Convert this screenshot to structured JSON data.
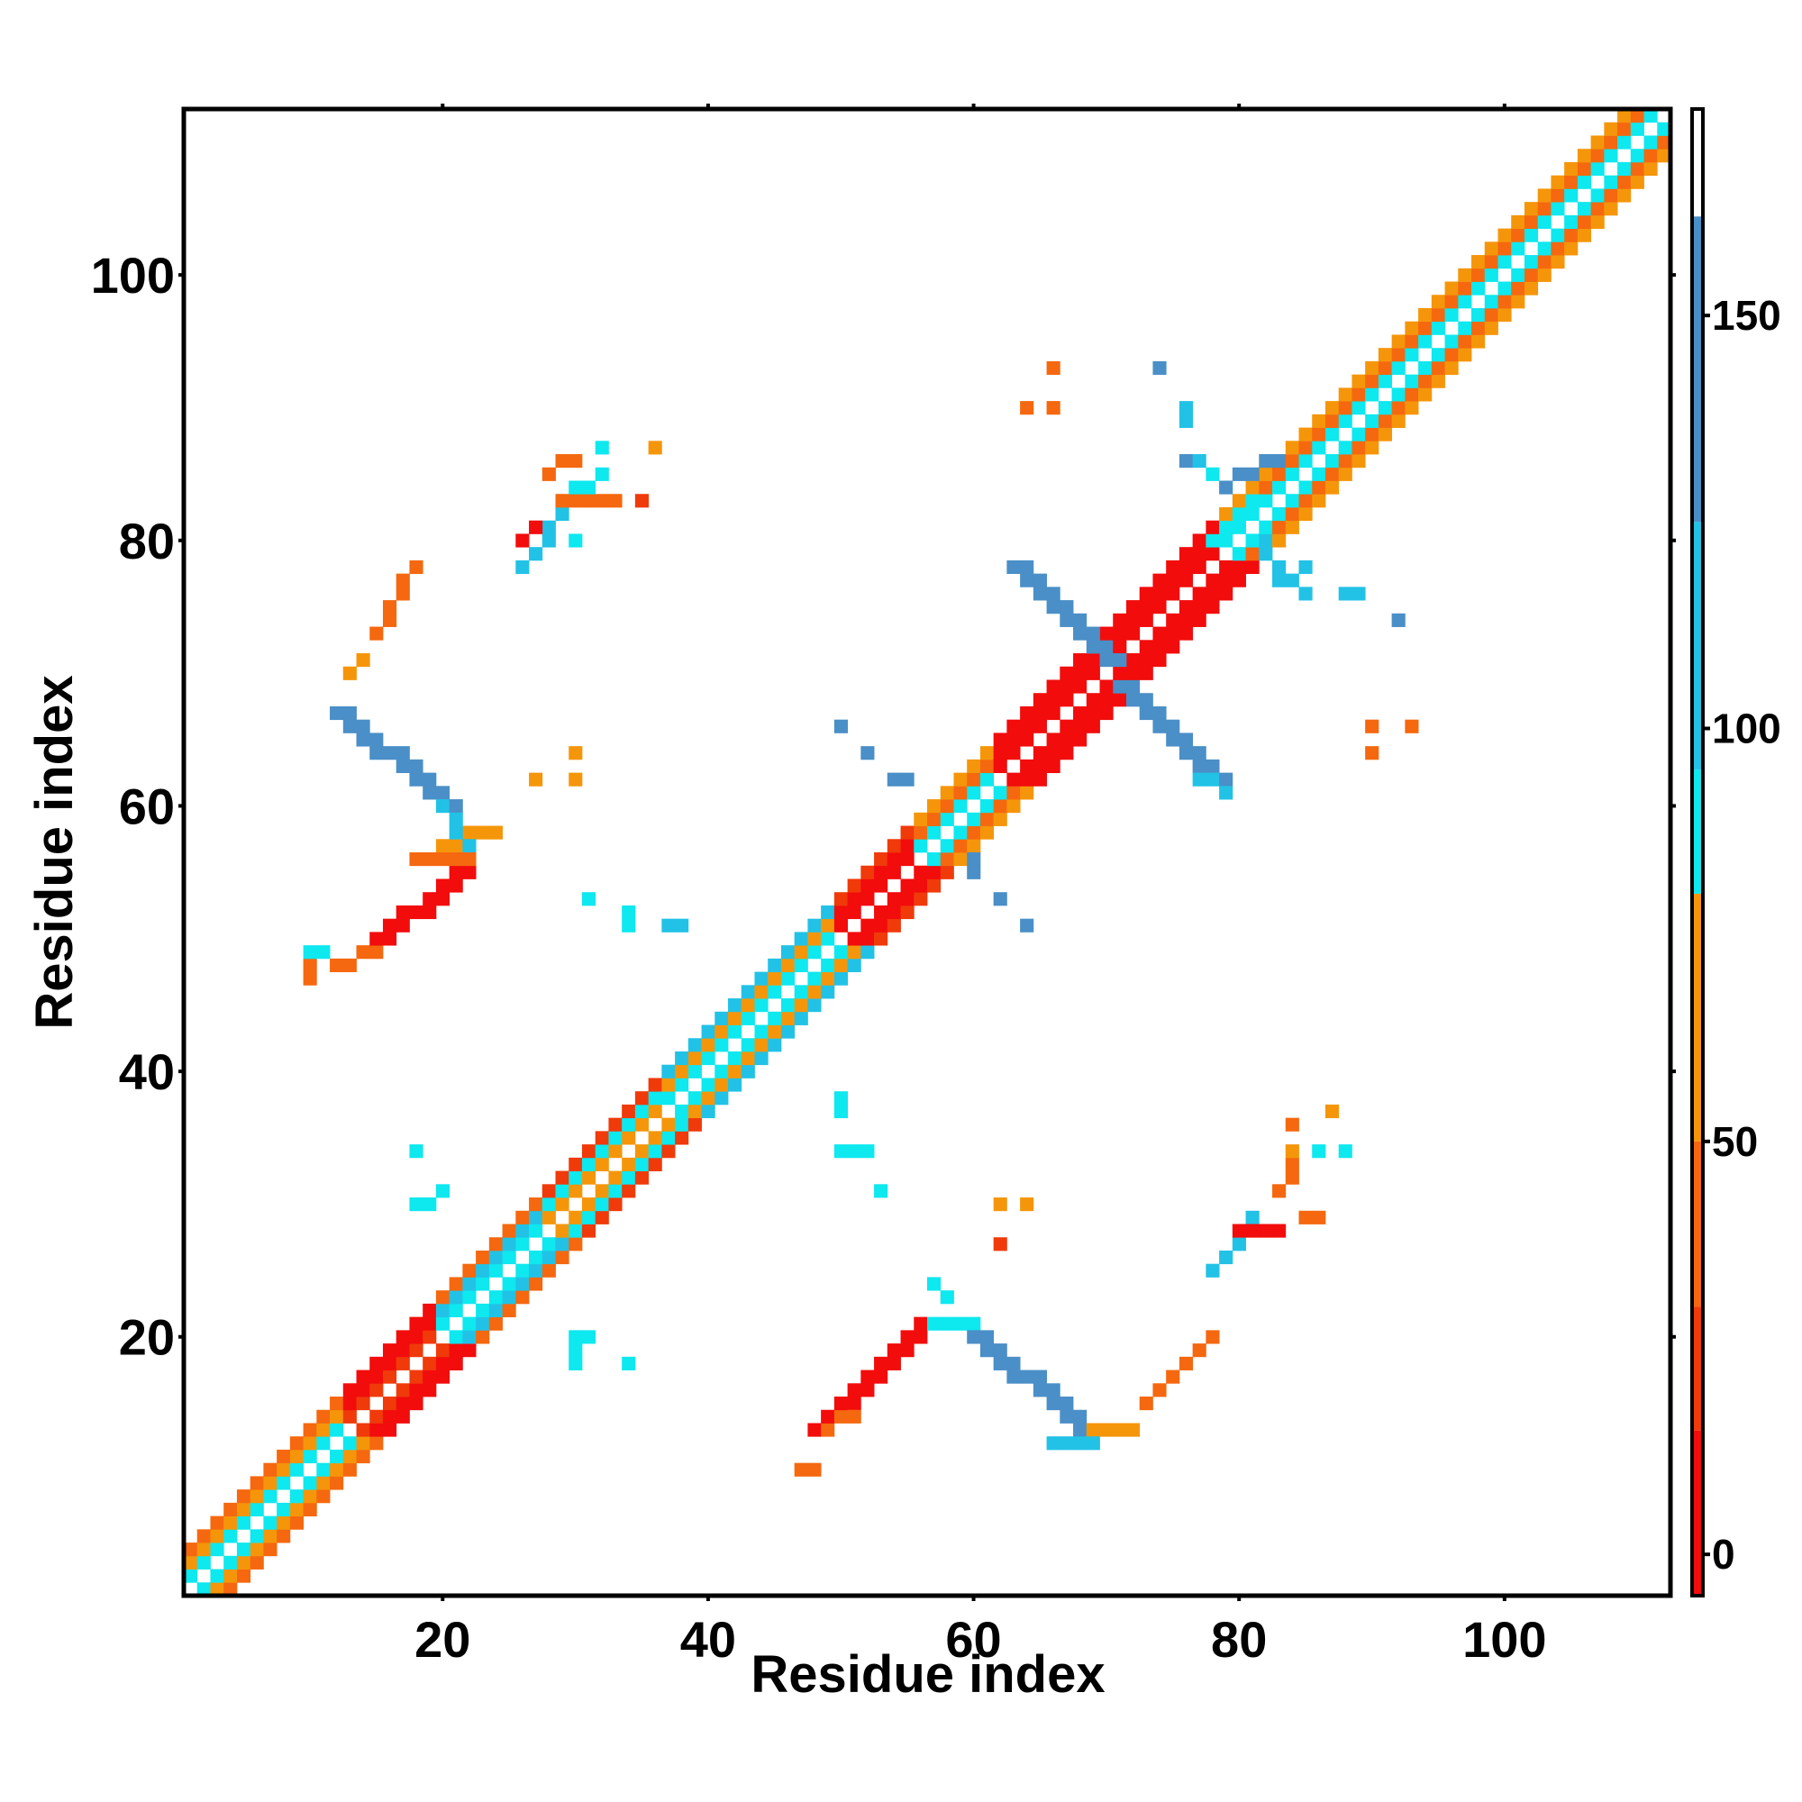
{
  "chart_data": {
    "type": "heatmap",
    "title": "",
    "xlabel": "Residue index",
    "ylabel": "Residue index",
    "xlim": [
      0.5,
      112.5
    ],
    "ylim": [
      0.5,
      112.5
    ],
    "x_ticks": [
      20,
      40,
      60,
      80,
      100
    ],
    "y_ticks": [
      20,
      40,
      60,
      80,
      100
    ],
    "grid": false,
    "legend": "colorbar-right",
    "colorbar": {
      "range": [
        -5,
        175
      ],
      "ticks": [
        0,
        50,
        100,
        150
      ],
      "bands": [
        {
          "from": -5,
          "to": 15,
          "color": "#f20c0c"
        },
        {
          "from": 15,
          "to": 30,
          "color": "#f03a0a"
        },
        {
          "from": 30,
          "to": 50,
          "color": "#f5680f"
        },
        {
          "from": 50,
          "to": 80,
          "color": "#f5960a"
        },
        {
          "from": 80,
          "to": 95,
          "color": "#0ee8ef"
        },
        {
          "from": 95,
          "to": 125,
          "color": "#22c2e6"
        },
        {
          "from": 125,
          "to": 162,
          "color": "#4a8fc7"
        },
        {
          "from": 162,
          "to": 175,
          "color": "#ffffff"
        }
      ]
    },
    "values_note_scale": "contact value per residue pair; symmetric matrix",
    "palette": {
      "A": "#f20c0c",
      "B": "#f03a0a",
      "C": "#f5680f",
      "D": "#f5960a",
      "E": "#0ee8ef",
      "F": "#22c2e6",
      "G": "#4a8fc7"
    },
    "palette_values": {
      "A": 5,
      "B": 25,
      "C": 40,
      "D": 65,
      "E": 90,
      "F": 110,
      "G": 145
    },
    "diagonal_pattern": {
      "ranges": [
        {
          "start": 1,
          "end": 13,
          "codes": [
            "E",
            "D",
            "C"
          ]
        },
        {
          "start": 13,
          "end": 20,
          "codes": [
            "B",
            "A",
            "A"
          ]
        },
        {
          "start": 20,
          "end": 28,
          "codes": [
            "E",
            "F",
            "C"
          ]
        },
        {
          "start": 28,
          "end": 37,
          "codes": [
            "D",
            "E",
            "B"
          ]
        },
        {
          "start": 37,
          "end": 50,
          "codes": [
            "E",
            "D",
            "F"
          ]
        },
        {
          "start": 50,
          "end": 56,
          "codes": [
            "A",
            "A",
            "B"
          ]
        },
        {
          "start": 56,
          "end": 62,
          "codes": [
            "E",
            "C",
            "D"
          ]
        },
        {
          "start": 62,
          "end": 79,
          "codes": [
            "A",
            "A",
            "A"
          ]
        },
        {
          "start": 79,
          "end": 112,
          "codes": [
            "E",
            "C",
            "D"
          ]
        }
      ]
    },
    "contacts": [
      {
        "x1": 12,
        "y1": 67,
        "x2": 20,
        "y2": 60,
        "code": "G",
        "width": 2
      },
      {
        "x1": 13,
        "y1": 70,
        "x2": 14,
        "y2": 71,
        "code": "D",
        "width": 1
      },
      {
        "x1": 15,
        "y1": 73,
        "x2": 18,
        "y2": 78,
        "code": "C",
        "width": 1
      },
      {
        "x1": 20,
        "y1": 57,
        "x2": 24,
        "y2": 58,
        "code": "D",
        "width": 1
      },
      {
        "x1": 20,
        "y1": 60,
        "x2": 22,
        "y2": 57,
        "code": "F",
        "width": 1
      },
      {
        "x1": 14,
        "y1": 49,
        "x2": 21,
        "y2": 55,
        "code": "A",
        "width": 2
      },
      {
        "x1": 12,
        "y1": 48,
        "x2": 15,
        "y2": 49,
        "code": "C",
        "width": 1
      },
      {
        "x1": 10,
        "y1": 47,
        "x2": 10,
        "y2": 48,
        "code": "C",
        "width": 1
      },
      {
        "x1": 10,
        "y1": 49,
        "x2": 11,
        "y2": 49,
        "code": "E",
        "width": 1
      },
      {
        "x1": 18,
        "y1": 56,
        "x2": 22,
        "y2": 56,
        "code": "C",
        "width": 1
      },
      {
        "x1": 26,
        "y1": 78,
        "x2": 29,
        "y2": 82,
        "code": "F",
        "width": 1
      },
      {
        "x1": 26,
        "y1": 80,
        "x2": 27,
        "y2": 81,
        "code": "A",
        "width": 1
      },
      {
        "x1": 28,
        "y1": 85,
        "x2": 30,
        "y2": 86,
        "code": "C",
        "width": 1
      },
      {
        "x1": 29,
        "y1": 83,
        "x2": 33,
        "y2": 83,
        "code": "C",
        "width": 1
      },
      {
        "x1": 30,
        "y1": 84,
        "x2": 31,
        "y2": 84,
        "code": "E",
        "width": 1
      },
      {
        "x1": 48,
        "y1": 13,
        "x2": 56,
        "y2": 21,
        "code": "A",
        "width": 2
      },
      {
        "x1": 47,
        "y1": 10,
        "x2": 48,
        "y2": 10,
        "code": "C",
        "width": 1
      },
      {
        "x1": 49,
        "y1": 13,
        "x2": 51,
        "y2": 14,
        "code": "C",
        "width": 1
      },
      {
        "x1": 57,
        "y1": 21,
        "x2": 60,
        "y2": 21,
        "code": "E",
        "width": 1
      },
      {
        "x1": 60,
        "y1": 20,
        "x2": 68,
        "y2": 13,
        "code": "G",
        "width": 2
      },
      {
        "x1": 66,
        "y1": 12,
        "x2": 69,
        "y2": 12,
        "code": "F",
        "width": 1
      },
      {
        "x1": 69,
        "y1": 13,
        "x2": 72,
        "y2": 13,
        "code": "D",
        "width": 1
      },
      {
        "x1": 73,
        "y1": 15,
        "x2": 78,
        "y2": 20,
        "code": "C",
        "width": 1
      },
      {
        "x1": 58,
        "y1": 23,
        "x2": 57,
        "y2": 24,
        "code": "E",
        "width": 1
      },
      {
        "x1": 63,
        "y1": 78,
        "x2": 70,
        "y2": 71,
        "code": "G",
        "width": 2
      },
      {
        "x1": 71,
        "y1": 69,
        "x2": 78,
        "y2": 62,
        "code": "G",
        "width": 2
      },
      {
        "x1": 77,
        "y1": 62,
        "x2": 79,
        "y2": 61,
        "code": "F",
        "width": 1
      },
      {
        "x1": 78,
        "y1": 25,
        "x2": 81,
        "y2": 29,
        "code": "F",
        "width": 1
      },
      {
        "x1": 80,
        "y1": 28,
        "x2": 83,
        "y2": 28,
        "code": "A",
        "width": 1
      },
      {
        "x1": 83,
        "y1": 31,
        "x2": 84,
        "y2": 33,
        "code": "C",
        "width": 1
      },
      {
        "x1": 85,
        "y1": 29,
        "x2": 86,
        "y2": 29,
        "code": "C",
        "width": 1
      },
      {
        "x1": 78,
        "y1": 80,
        "x2": 81,
        "y2": 83,
        "code": "E",
        "width": 1
      },
      {
        "x1": 79,
        "y1": 84,
        "x2": 83,
        "y2": 86,
        "code": "G",
        "width": 1
      },
      {
        "x1": 82,
        "y1": 80,
        "x2": 83,
        "y2": 77,
        "code": "F",
        "width": 1
      }
    ],
    "points": [
      {
        "x": 34,
        "y": 52,
        "code": "E"
      },
      {
        "x": 34,
        "y": 51,
        "code": "E"
      },
      {
        "x": 31,
        "y": 53,
        "code": "E"
      },
      {
        "x": 37,
        "y": 51,
        "code": "F"
      },
      {
        "x": 38,
        "y": 51,
        "code": "F"
      },
      {
        "x": 27,
        "y": 62,
        "code": "D"
      },
      {
        "x": 30,
        "y": 62,
        "code": "D"
      },
      {
        "x": 30,
        "y": 64,
        "code": "D"
      },
      {
        "x": 30,
        "y": 80,
        "code": "E"
      },
      {
        "x": 32,
        "y": 87,
        "code": "E"
      },
      {
        "x": 32,
        "y": 85,
        "code": "E"
      },
      {
        "x": 36,
        "y": 87,
        "code": "D"
      },
      {
        "x": 35,
        "y": 83,
        "code": "B"
      },
      {
        "x": 18,
        "y": 34,
        "code": "E"
      },
      {
        "x": 18,
        "y": 30,
        "code": "E"
      },
      {
        "x": 19,
        "y": 30,
        "code": "E"
      },
      {
        "x": 20,
        "y": 31,
        "code": "E"
      },
      {
        "x": 30,
        "y": 20,
        "code": "E"
      },
      {
        "x": 31,
        "y": 20,
        "code": "E"
      },
      {
        "x": 30,
        "y": 19,
        "code": "E"
      },
      {
        "x": 30,
        "y": 18,
        "code": "E"
      },
      {
        "x": 34,
        "y": 18,
        "code": "E"
      },
      {
        "x": 50,
        "y": 38,
        "code": "E"
      },
      {
        "x": 50,
        "y": 37,
        "code": "E"
      },
      {
        "x": 50,
        "y": 34,
        "code": "E"
      },
      {
        "x": 51,
        "y": 34,
        "code": "E"
      },
      {
        "x": 52,
        "y": 34,
        "code": "E"
      },
      {
        "x": 53,
        "y": 31,
        "code": "E"
      },
      {
        "x": 50,
        "y": 66,
        "code": "G"
      },
      {
        "x": 52,
        "y": 64,
        "code": "G"
      },
      {
        "x": 54,
        "y": 62,
        "code": "G"
      },
      {
        "x": 55,
        "y": 62,
        "code": "G"
      },
      {
        "x": 60,
        "y": 56,
        "code": "G"
      },
      {
        "x": 60,
        "y": 55,
        "code": "G"
      },
      {
        "x": 62,
        "y": 53,
        "code": "G"
      },
      {
        "x": 64,
        "y": 51,
        "code": "G"
      },
      {
        "x": 62,
        "y": 30,
        "code": "D"
      },
      {
        "x": 64,
        "y": 30,
        "code": "D"
      },
      {
        "x": 62,
        "y": 27,
        "code": "B"
      },
      {
        "x": 64,
        "y": 90,
        "code": "C"
      },
      {
        "x": 66,
        "y": 90,
        "code": "C"
      },
      {
        "x": 66,
        "y": 93,
        "code": "C"
      },
      {
        "x": 74,
        "y": 93,
        "code": "G"
      },
      {
        "x": 76,
        "y": 89,
        "code": "F"
      },
      {
        "x": 76,
        "y": 90,
        "code": "F"
      },
      {
        "x": 76,
        "y": 86,
        "code": "G"
      },
      {
        "x": 77,
        "y": 86,
        "code": "F"
      },
      {
        "x": 78,
        "y": 85,
        "code": "E"
      },
      {
        "x": 84,
        "y": 77,
        "code": "F"
      },
      {
        "x": 85,
        "y": 78,
        "code": "F"
      },
      {
        "x": 85,
        "y": 76,
        "code": "F"
      },
      {
        "x": 88,
        "y": 76,
        "code": "F"
      },
      {
        "x": 89,
        "y": 76,
        "code": "F"
      },
      {
        "x": 92,
        "y": 74,
        "code": "G"
      },
      {
        "x": 90,
        "y": 66,
        "code": "C"
      },
      {
        "x": 93,
        "y": 66,
        "code": "C"
      },
      {
        "x": 90,
        "y": 64,
        "code": "C"
      },
      {
        "x": 84,
        "y": 36,
        "code": "C"
      },
      {
        "x": 87,
        "y": 37,
        "code": "D"
      },
      {
        "x": 86,
        "y": 34,
        "code": "E"
      },
      {
        "x": 88,
        "y": 34,
        "code": "E"
      },
      {
        "x": 84,
        "y": 34,
        "code": "D"
      }
    ]
  }
}
